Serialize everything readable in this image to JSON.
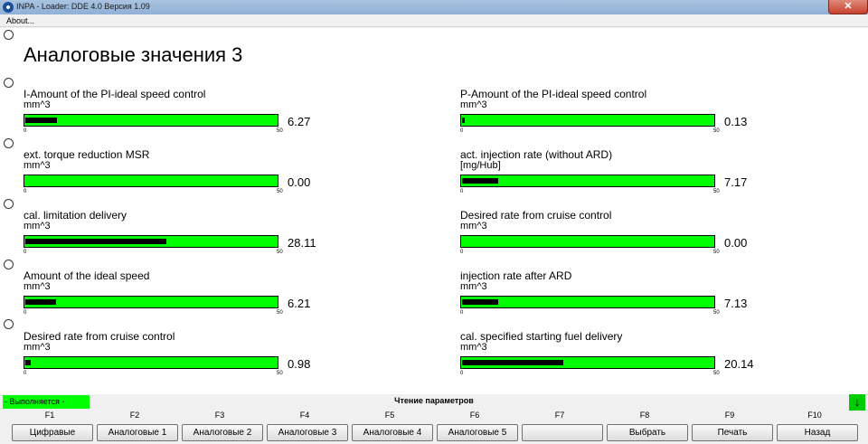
{
  "window": {
    "title": "INPA - Loader:  DDE 4.0 Версия 1.09",
    "close_label": "✕",
    "app_icon": "bmw-logo-icon"
  },
  "menu": {
    "items": [
      "About..."
    ]
  },
  "page": {
    "title": "Аналоговые значения 3"
  },
  "gauges_left": [
    {
      "label": "I-Amount of the PI-ideal speed control",
      "unit": "mm^3",
      "min": "0",
      "max": "50",
      "value": "6.27",
      "fill_fraction": 0.125
    },
    {
      "label": "ext. torque reduction MSR",
      "unit": "mm^3",
      "min": "0",
      "max": "50",
      "value": "0.00",
      "fill_fraction": 0.0
    },
    {
      "label": "cal. limitation delivery",
      "unit": "mm^3",
      "min": "0",
      "max": "50",
      "value": "28.11",
      "fill_fraction": 0.562
    },
    {
      "label": "Amount of the ideal speed",
      "unit": "mm^3",
      "min": "0",
      "max": "50",
      "value": "6.21",
      "fill_fraction": 0.124
    },
    {
      "label": "Desired rate from cruise control",
      "unit": "mm^3",
      "min": "0",
      "max": "50",
      "value": "0.98",
      "fill_fraction": 0.02
    }
  ],
  "gauges_right": [
    {
      "label": "P-Amount of the PI-ideal speed control",
      "unit": "mm^3",
      "min": "0",
      "max": "50",
      "value": "0.13",
      "fill_fraction": 0.003
    },
    {
      "label": "act. injection rate (without ARD)",
      "unit": "[mg/Hub]",
      "min": "0",
      "max": "50",
      "value": "7.17",
      "fill_fraction": 0.143
    },
    {
      "label": "Desired rate from cruise control",
      "unit": "mm^3",
      "min": "0",
      "max": "50",
      "value": "0.00",
      "fill_fraction": 0.0
    },
    {
      "label": "injection rate after ARD",
      "unit": "mm^3",
      "min": "0",
      "max": "50",
      "value": "7.13",
      "fill_fraction": 0.143
    },
    {
      "label": "cal. specified starting fuel delivery",
      "unit": "mm^3",
      "min": "0",
      "max": "50",
      "value": "20.14",
      "fill_fraction": 0.403
    }
  ],
  "status": {
    "left": "- Выполняется -",
    "center": "Чтение параметров",
    "arrow_icon": "arrow-down-icon",
    "arrow_glyph": "↓",
    "running_color": "#00ff00"
  },
  "function_keys": [
    {
      "key": "F1",
      "label": "Цифравые"
    },
    {
      "key": "F2",
      "label": "Аналоговые 1"
    },
    {
      "key": "F3",
      "label": "Аналоговые 2"
    },
    {
      "key": "F4",
      "label": "Аналоговые 3"
    },
    {
      "key": "F5",
      "label": "Аналоговые 4"
    },
    {
      "key": "F6",
      "label": "Аналоговые 5"
    },
    {
      "key": "F7",
      "label": ""
    },
    {
      "key": "F8",
      "label": "Выбрать"
    },
    {
      "key": "F9",
      "label": "Печать"
    },
    {
      "key": "F10",
      "label": "Назад"
    }
  ],
  "colors": {
    "bar_green": "#00ff00",
    "bar_fill": "#000000"
  }
}
